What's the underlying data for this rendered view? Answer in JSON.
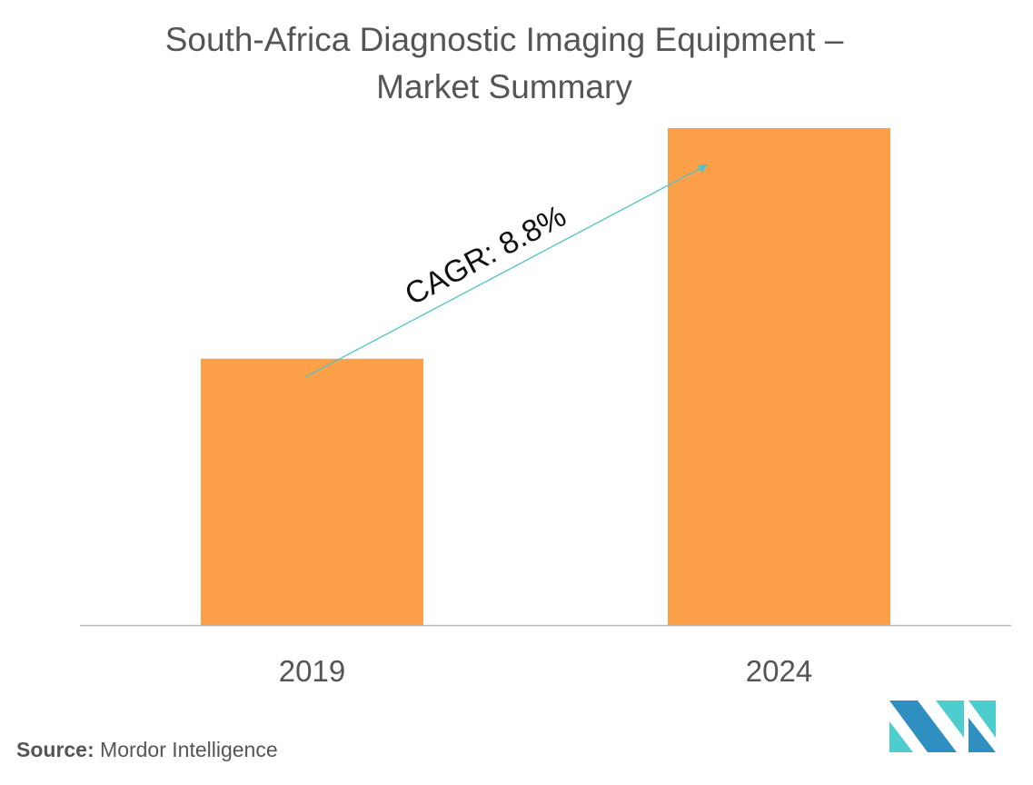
{
  "chart_data": {
    "type": "bar",
    "title_line1": "South-Africa Diagnostic Imaging Equipment –",
    "title_line2": "Market Summary",
    "categories": [
      "2019",
      "2024"
    ],
    "values": [
      0.536,
      1.0
    ],
    "xlabel": "",
    "ylabel": "",
    "ylim": [
      0,
      1.0
    ],
    "grid": false,
    "annotation": "CAGR: 8.8%",
    "colors": {
      "bar": "#FBA048",
      "arrow": "#4FC3C8",
      "axis": "#BBBBBB"
    }
  },
  "footer": {
    "source_label": "Source:",
    "source_value": " Mordor Intelligence"
  },
  "logo": {
    "colors": {
      "dark": "#2E8FC0",
      "light": "#4ECDCF"
    }
  }
}
